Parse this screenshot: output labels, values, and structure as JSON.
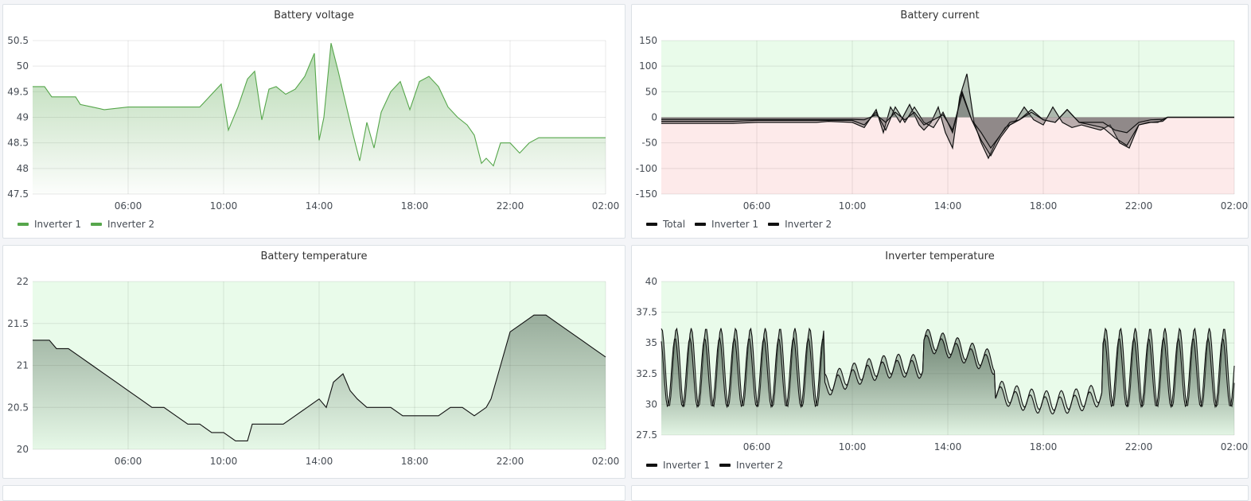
{
  "colors": {
    "green": "#56a64b",
    "green_fill": "#cfeac8",
    "ok_band": "#e9fbea",
    "bad_band": "#fdeaea",
    "black": "#111111",
    "gray": "#8c8c8c"
  },
  "panels": [
    {
      "id": "voltage",
      "title": "Battery voltage",
      "legend": [
        "Inverter 1",
        "Inverter 2"
      ],
      "legend_color": "#56a64b"
    },
    {
      "id": "current",
      "title": "Battery current",
      "legend": [
        "Total",
        "Inverter 1",
        "Inverter 2"
      ],
      "legend_color": "#111111"
    },
    {
      "id": "btemp",
      "title": "Battery temperature",
      "legend": [],
      "legend_color": "#111111"
    },
    {
      "id": "itemp",
      "title": "Inverter temperature",
      "legend": [
        "Inverter 1",
        "Inverter 2"
      ],
      "legend_color": "#111111"
    }
  ],
  "chart_data": [
    {
      "type": "area",
      "title": "Battery voltage",
      "x_ticks": [
        "06:00",
        "10:00",
        "14:00",
        "18:00",
        "22:00",
        "02:00"
      ],
      "y_ticks": [
        "47.5",
        "48",
        "48.5",
        "49",
        "49.5",
        "50",
        "50.5"
      ],
      "ylim": [
        47.5,
        50.5
      ],
      "xlim_hours": [
        2.0,
        26.0
      ],
      "legend": "bottom-left",
      "series": [
        {
          "name": "Inverter 1",
          "color": "#56a64b",
          "x": [
            2,
            2.5,
            2.8,
            3.8,
            4.0,
            4.5,
            5.0,
            6.0,
            7.0,
            8.0,
            8.5,
            9.0,
            9.3,
            9.6,
            9.9,
            10.2,
            10.6,
            11.0,
            11.3,
            11.6,
            11.9,
            12.2,
            12.6,
            13.0,
            13.4,
            13.8,
            14.0,
            14.2,
            14.5,
            14.8,
            15.1,
            15.4,
            15.7,
            16.0,
            16.3,
            16.6,
            17.0,
            17.4,
            17.8,
            18.2,
            18.6,
            19.0,
            19.4,
            19.8,
            20.2,
            20.5,
            20.8,
            21.0,
            21.3,
            21.6,
            22.0,
            22.4,
            22.8,
            23.2,
            24,
            25,
            26
          ],
          "y": [
            49.6,
            49.6,
            49.4,
            49.4,
            49.25,
            49.2,
            49.15,
            49.2,
            49.2,
            49.2,
            49.2,
            49.2,
            49.35,
            49.5,
            49.65,
            48.75,
            49.2,
            49.75,
            49.9,
            48.95,
            49.55,
            49.6,
            49.45,
            49.55,
            49.8,
            50.25,
            48.55,
            49.0,
            50.45,
            49.9,
            49.3,
            48.7,
            48.15,
            48.9,
            48.4,
            49.1,
            49.5,
            49.7,
            49.15,
            49.7,
            49.8,
            49.6,
            49.2,
            49.0,
            48.85,
            48.65,
            48.1,
            48.2,
            48.05,
            48.5,
            48.5,
            48.3,
            48.5,
            48.6,
            48.6,
            48.6,
            48.6
          ]
        }
      ]
    },
    {
      "type": "area",
      "title": "Battery current",
      "x_ticks": [
        "06:00",
        "10:00",
        "14:00",
        "18:00",
        "22:00",
        "02:00"
      ],
      "y_ticks": [
        "-150",
        "-100",
        "-50",
        "0",
        "50",
        "100",
        "150"
      ],
      "ylim": [
        -150,
        150
      ],
      "xlim_hours": [
        2.0,
        26.0
      ],
      "legend": "bottom-left",
      "thresholds": [
        {
          "from": 0,
          "to": 150,
          "color": "#e9fbea"
        },
        {
          "from": -150,
          "to": 0,
          "color": "#fdeaea"
        }
      ],
      "series": [
        {
          "name": "Total",
          "color": "#111111",
          "x": [
            2,
            3,
            4,
            5,
            6,
            7,
            8,
            8.5,
            9,
            10,
            10.5,
            11,
            11.3,
            11.6,
            12,
            12.4,
            12.8,
            13,
            13.3,
            13.6,
            13.9,
            14.2,
            14.5,
            14.8,
            15.1,
            15.4,
            15.7,
            16,
            16.4,
            16.8,
            17.2,
            17.6,
            18,
            18.4,
            18.8,
            19.2,
            19.6,
            20,
            20.4,
            20.8,
            21.2,
            21.6,
            22,
            22.4,
            22.8,
            23,
            23.2,
            24,
            26
          ],
          "y": [
            -12,
            -12,
            -12,
            -12,
            -10,
            -10,
            -10,
            -10,
            -8,
            -10,
            -20,
            15,
            -30,
            20,
            -10,
            25,
            -15,
            -25,
            -10,
            20,
            -30,
            -60,
            40,
            85,
            -10,
            -50,
            -80,
            -50,
            -20,
            -10,
            20,
            -5,
            -15,
            20,
            -10,
            -20,
            -15,
            -20,
            -25,
            -15,
            -50,
            -60,
            -15,
            -10,
            -10,
            -5,
            0,
            0,
            0
          ]
        },
        {
          "name": "Inverter 1",
          "color": "#111111",
          "x": [
            2,
            3,
            4,
            5,
            6,
            7,
            8,
            9,
            10,
            10.5,
            11,
            11.4,
            11.8,
            12.2,
            12.6,
            13,
            13.4,
            13.8,
            14.2,
            14.6,
            15,
            15.4,
            15.8,
            16.2,
            16.6,
            17,
            17.5,
            18,
            18.5,
            19,
            19.5,
            20,
            20.5,
            21,
            21.5,
            22,
            22.5,
            23,
            23.2,
            24,
            26
          ],
          "y": [
            -8,
            -8,
            -8,
            -8,
            -6,
            -6,
            -6,
            -6,
            -6,
            -15,
            10,
            -25,
            20,
            -10,
            20,
            -10,
            -20,
            10,
            -30,
            50,
            -5,
            -45,
            -75,
            -40,
            -15,
            -5,
            15,
            -5,
            -10,
            15,
            -10,
            -15,
            -20,
            -40,
            -55,
            -15,
            -10,
            -8,
            0,
            0,
            0
          ]
        },
        {
          "name": "Inverter 2",
          "color": "#111111",
          "x": [
            2,
            3,
            4,
            5,
            6,
            7,
            8,
            9,
            10,
            10.5,
            11,
            11.4,
            11.8,
            12.2,
            12.6,
            13,
            13.4,
            13.8,
            14.2,
            14.6,
            15,
            15.4,
            15.8,
            16.2,
            16.6,
            17,
            17.5,
            18,
            18.5,
            19,
            19.5,
            20,
            20.5,
            21,
            21.5,
            22,
            22.5,
            23,
            23.2,
            24,
            26
          ],
          "y": [
            -4,
            -4,
            -4,
            -4,
            -4,
            -4,
            -4,
            -4,
            -4,
            -5,
            5,
            -10,
            10,
            -5,
            10,
            -15,
            -5,
            5,
            -25,
            45,
            -5,
            -30,
            -60,
            -35,
            -10,
            -5,
            10,
            -5,
            -10,
            15,
            -10,
            -10,
            -10,
            -25,
            -30,
            -10,
            -5,
            -4,
            0,
            0,
            0
          ]
        }
      ]
    },
    {
      "type": "area",
      "title": "Battery temperature",
      "x_ticks": [
        "06:00",
        "10:00",
        "14:00",
        "18:00",
        "22:00",
        "02:00"
      ],
      "y_ticks": [
        "20",
        "20.5",
        "21",
        "21.5",
        "22"
      ],
      "ylim": [
        20,
        22
      ],
      "xlim_hours": [
        2.0,
        26.0
      ],
      "series": [
        {
          "name": "",
          "color": "#111111",
          "x": [
            2,
            2.7,
            3,
            3.5,
            4,
            4.5,
            5,
            5.5,
            6,
            6.5,
            7,
            7.5,
            8,
            8.5,
            9,
            9.5,
            10,
            10.5,
            11,
            11.2,
            11.5,
            12,
            12.5,
            13,
            13.5,
            14,
            14.3,
            14.6,
            15,
            15.3,
            15.6,
            16,
            16.5,
            17,
            17.5,
            18,
            18.5,
            19,
            19.5,
            20,
            20.5,
            21,
            21.2,
            21.5,
            22,
            22.5,
            23,
            23.5,
            24,
            24.5,
            25,
            25.5,
            26
          ],
          "y": [
            21.3,
            21.3,
            21.2,
            21.2,
            21.1,
            21.0,
            20.9,
            20.8,
            20.7,
            20.6,
            20.5,
            20.5,
            20.4,
            20.3,
            20.3,
            20.2,
            20.2,
            20.1,
            20.1,
            20.3,
            20.3,
            20.3,
            20.3,
            20.4,
            20.5,
            20.6,
            20.5,
            20.8,
            20.9,
            20.7,
            20.6,
            20.5,
            20.5,
            20.5,
            20.4,
            20.4,
            20.4,
            20.4,
            20.5,
            20.5,
            20.4,
            20.5,
            20.6,
            20.9,
            21.4,
            21.5,
            21.6,
            21.6,
            21.5,
            21.4,
            21.3,
            21.2,
            21.1
          ]
        }
      ]
    },
    {
      "type": "area",
      "title": "Inverter temperature",
      "x_ticks": [
        "06:00",
        "10:00",
        "14:00",
        "18:00",
        "22:00",
        "02:00"
      ],
      "y_ticks": [
        "27.5",
        "30",
        "32.5",
        "35",
        "37.5",
        "40"
      ],
      "ylim": [
        27.5,
        40
      ],
      "xlim_hours": [
        2.0,
        26.0
      ],
      "legend": "bottom-left",
      "series": [
        {
          "name": "Inverter 1",
          "color": "#111111",
          "pattern": "oscillating_1"
        },
        {
          "name": "Inverter 2",
          "color": "#111111",
          "pattern": "oscillating_2"
        }
      ]
    }
  ]
}
